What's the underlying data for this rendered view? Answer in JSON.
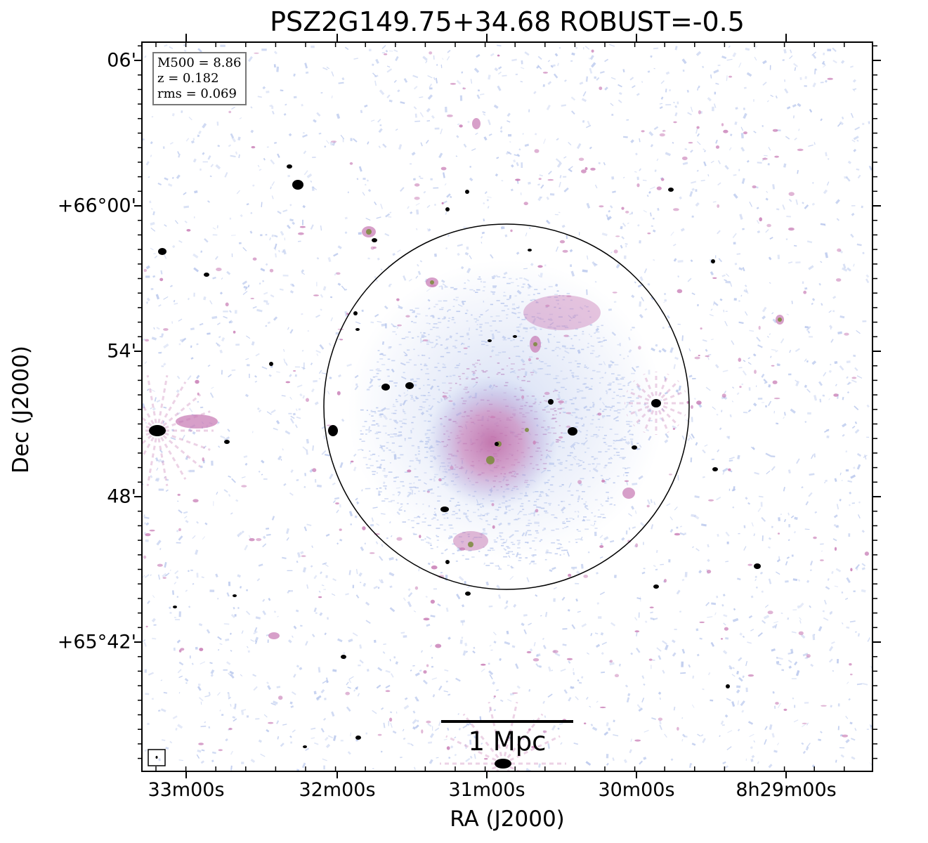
{
  "title": "PSZ2G149.75+34.68 ROBUST=-0.5",
  "axes": {
    "xlabel": "RA (J2000)",
    "ylabel": "Dec (J2000)",
    "xticks": [
      "33m00s",
      "32m00s",
      "31m00s",
      "30m00s",
      "8h29m00s"
    ],
    "yticks": [
      "06'",
      "+66°00'",
      "54'",
      "48'",
      "+65°42'"
    ]
  },
  "info": {
    "m500": "M500 = 8.86",
    "z": "z = 0.182",
    "rms": "rms = 0.069"
  },
  "scalebar": {
    "label": "1 Mpc"
  },
  "colors": {
    "noise": "#b7c6ec",
    "emission": "#c97fb7",
    "bright": "#7a8a3a",
    "source": "#000000"
  },
  "icons": {
    "beam": "beam-ellipse-icon",
    "circle": "r500-circle"
  }
}
